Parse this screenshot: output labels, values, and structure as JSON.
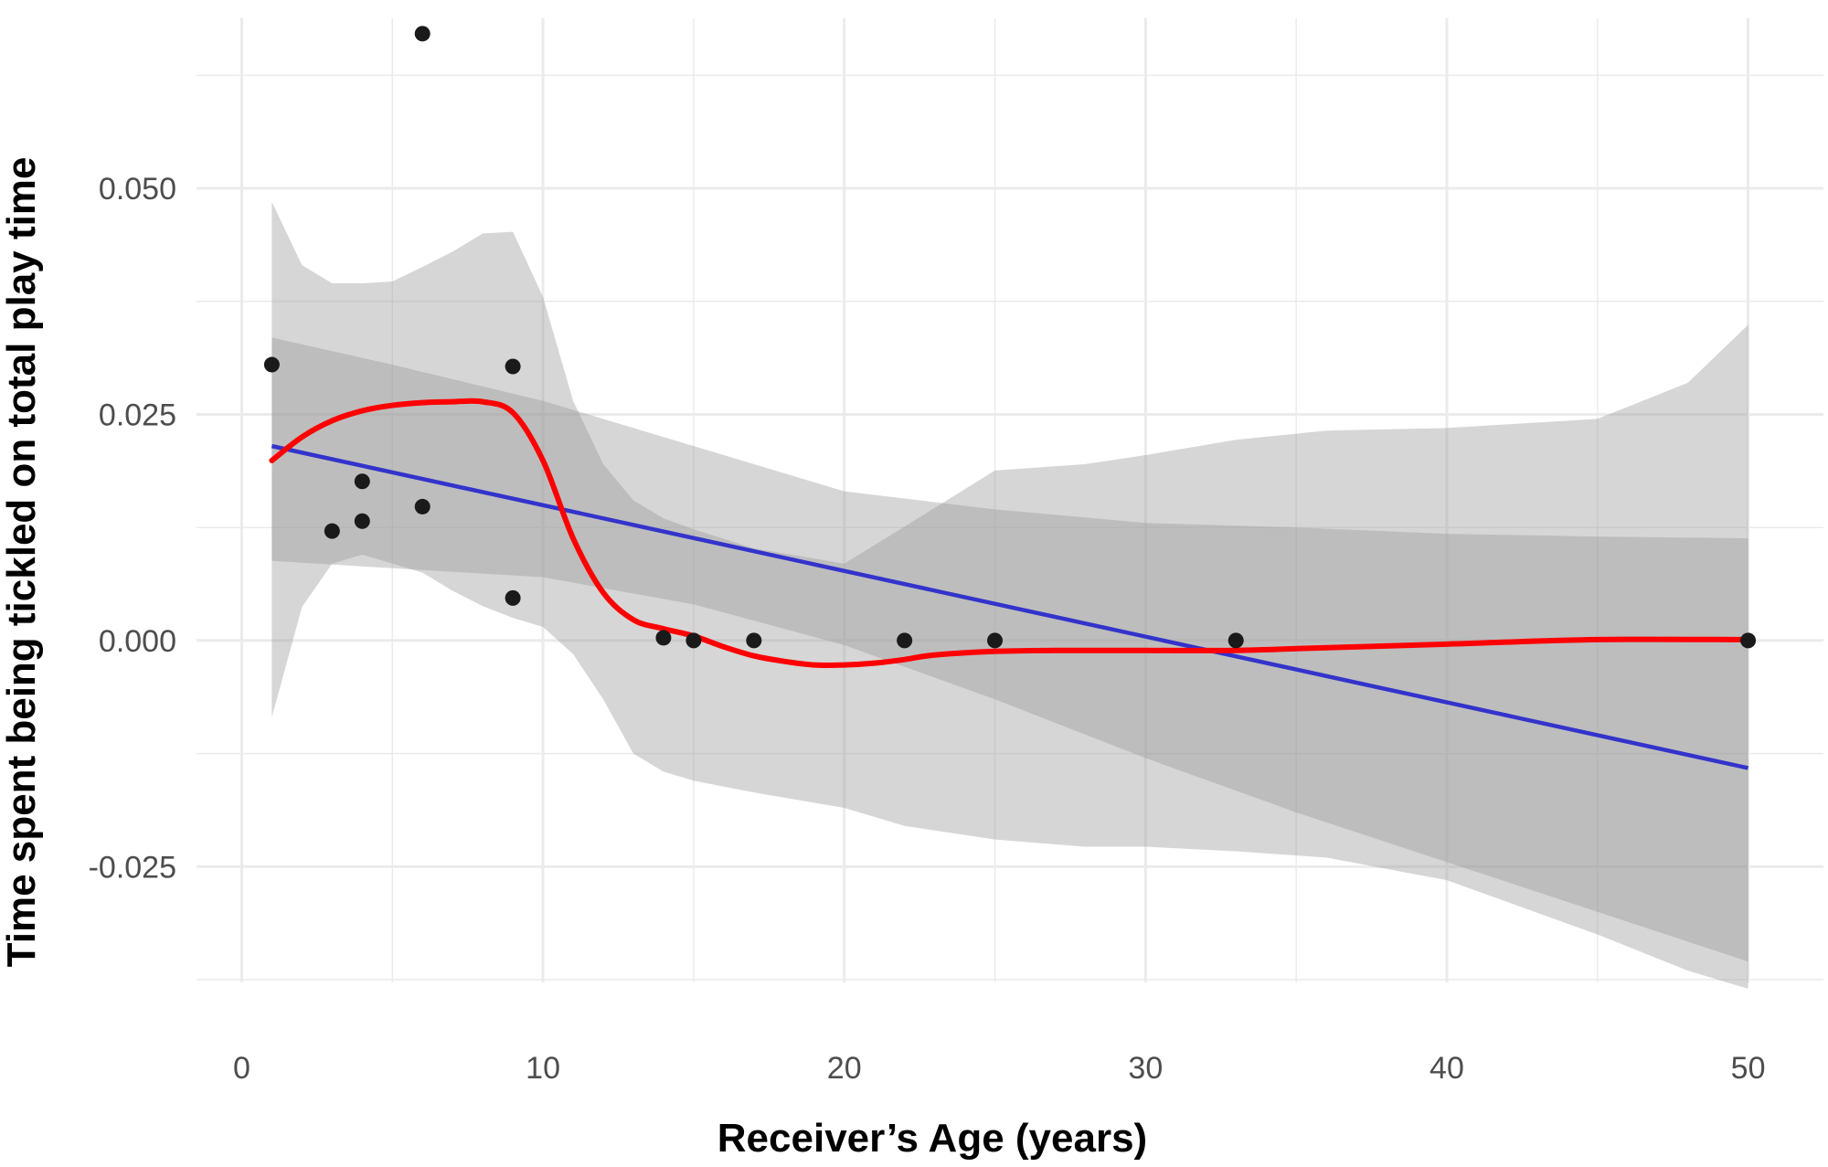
{
  "chart_data": {
    "type": "scatter",
    "title": "",
    "xlabel": "Receiver’s Age (years)",
    "ylabel": "Time spent being tickled on total play time",
    "xlim": [
      -1.5,
      52.5
    ],
    "ylim": [
      -0.0378,
      0.0688
    ],
    "x_ticks": [
      0,
      10,
      20,
      30,
      40,
      50
    ],
    "x_tick_labels": [
      "0",
      "10",
      "20",
      "30",
      "40",
      "50"
    ],
    "y_ticks": [
      -0.025,
      0.0,
      0.025,
      0.05
    ],
    "y_tick_labels": [
      "-0.025",
      "0.000",
      "0.025",
      "0.050"
    ],
    "grid": true,
    "legend": "none",
    "colors": {
      "points": "#1a1a1a",
      "linear_fit": "#3333cc",
      "loess_fit": "#ff0000",
      "outer_band": "#d9d9d9",
      "inner_band": "#adadad",
      "grid": "#ebebeb"
    },
    "points": [
      {
        "x": 1,
        "y": 0.0305
      },
      {
        "x": 3,
        "y": 0.0121
      },
      {
        "x": 4,
        "y": 0.0132
      },
      {
        "x": 4,
        "y": 0.0176
      },
      {
        "x": 6,
        "y": 0.0671
      },
      {
        "x": 6,
        "y": 0.0148
      },
      {
        "x": 9,
        "y": 0.0303
      },
      {
        "x": 9,
        "y": 0.0047
      },
      {
        "x": 14,
        "y": 0.0003
      },
      {
        "x": 15,
        "y": 0.0
      },
      {
        "x": 17,
        "y": 0.0
      },
      {
        "x": 22,
        "y": 0.0
      },
      {
        "x": 25,
        "y": 0.0
      },
      {
        "x": 33,
        "y": 0.0
      },
      {
        "x": 50,
        "y": 0.0
      }
    ],
    "linear_fit": {
      "x": [
        1,
        50
      ],
      "y": [
        0.0215,
        -0.0141
      ]
    },
    "linear_ci": {
      "x": [
        1,
        5,
        10,
        15,
        20,
        25,
        30,
        35,
        40,
        45,
        50
      ],
      "upper": [
        0.0335,
        0.0305,
        0.0265,
        0.0215,
        0.0165,
        0.0145,
        0.013,
        0.0125,
        0.0118,
        0.0115,
        0.0113
      ],
      "lower": [
        0.0088,
        0.008,
        0.007,
        0.004,
        -0.0005,
        -0.0065,
        -0.013,
        -0.019,
        -0.0245,
        -0.03,
        -0.0355
      ]
    },
    "loess_fit": {
      "x": [
        1,
        2,
        3,
        4,
        5,
        6,
        7,
        8,
        9,
        10,
        11,
        12,
        13,
        14,
        15,
        16,
        17,
        18,
        19,
        20,
        21,
        22,
        23,
        25,
        27,
        30,
        33,
        35,
        40,
        45,
        50
      ],
      "y": [
        0.0199,
        0.0225,
        0.0243,
        0.0254,
        0.026,
        0.0263,
        0.0264,
        0.0264,
        0.0252,
        0.0199,
        0.0113,
        0.0053,
        0.0023,
        0.0013,
        0.0005,
        -0.0007,
        -0.0017,
        -0.0023,
        -0.0027,
        -0.0027,
        -0.0025,
        -0.0021,
        -0.0016,
        -0.0012,
        -0.0011,
        -0.0011,
        -0.0011,
        -0.0009,
        -0.0004,
        0.0001,
        0.0001
      ]
    },
    "loess_ci": {
      "x": [
        1,
        2,
        3,
        4,
        5,
        6,
        7,
        8,
        9,
        10,
        11,
        12,
        13,
        14,
        15,
        17,
        20,
        22,
        25,
        28,
        30,
        33,
        36,
        40,
        45,
        48,
        50
      ],
      "upper": [
        0.0485,
        0.0415,
        0.0395,
        0.0395,
        0.0397,
        0.0413,
        0.043,
        0.045,
        0.0452,
        0.038,
        0.0265,
        0.0195,
        0.0155,
        0.0135,
        0.0123,
        0.0102,
        0.0085,
        0.0126,
        0.0188,
        0.0195,
        0.0205,
        0.0222,
        0.0232,
        0.0235,
        0.0245,
        0.0285,
        0.0349
      ],
      "lower": [
        -0.0085,
        0.0037,
        0.0085,
        0.0095,
        0.0085,
        0.0075,
        0.0055,
        0.0038,
        0.0025,
        0.0015,
        -0.0015,
        -0.0065,
        -0.0125,
        -0.0145,
        -0.0155,
        -0.0168,
        -0.0185,
        -0.0205,
        -0.022,
        -0.0228,
        -0.0228,
        -0.0233,
        -0.024,
        -0.0265,
        -0.0325,
        -0.0365,
        -0.0385
      ]
    }
  }
}
